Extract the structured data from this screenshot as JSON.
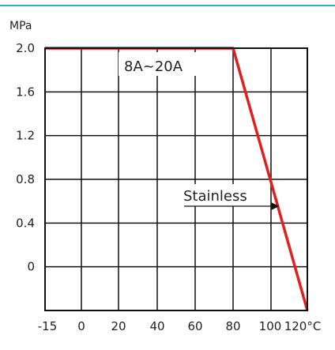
{
  "colors": {
    "accent_bar": "#2ab3d6",
    "frame": "#111111",
    "grid": "#111111",
    "series": "#e0201f"
  },
  "chart_data": {
    "type": "line",
    "title": "",
    "y_unit_label": "MPa",
    "x_unit_label": "°C",
    "xlabel": "",
    "ylabel": "",
    "x_tick_labels": [
      "-15",
      "0",
      "20",
      "40",
      "60",
      "80",
      "100",
      "120°C"
    ],
    "y_tick_labels": [
      "2.0",
      "1.6",
      "1.2",
      "0.8",
      "0.4",
      "0"
    ],
    "grid": true,
    "series": [
      {
        "name": "",
        "points": [
          {
            "x": -15,
            "y": 2.0
          },
          {
            "x": 80,
            "y": 2.0
          },
          {
            "x": 120,
            "y": -0.4
          }
        ]
      }
    ],
    "annotations": [
      {
        "text": "8A~20A"
      },
      {
        "text": "Stainless"
      }
    ]
  }
}
